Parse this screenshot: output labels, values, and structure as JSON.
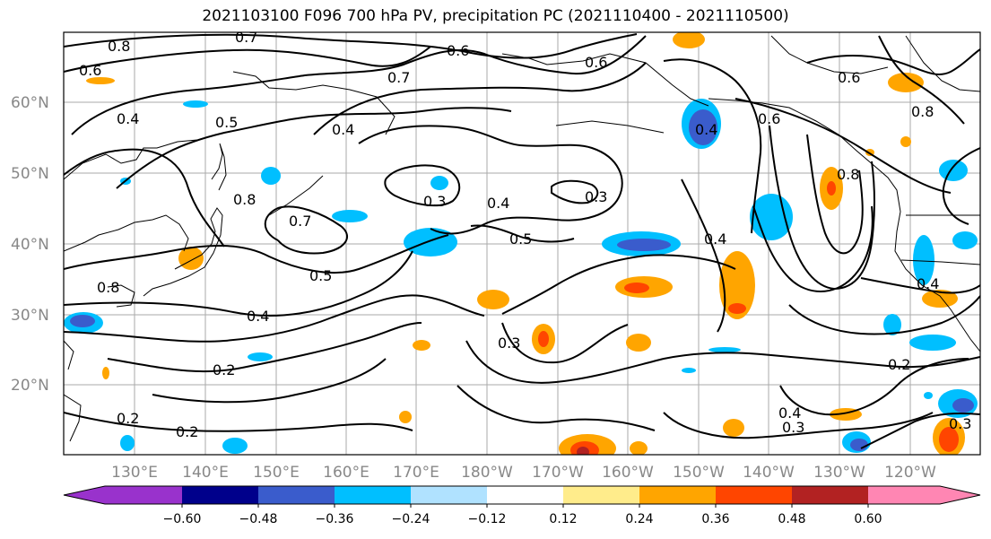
{
  "title": "2021103100 F096 700 hPa PV, precipitation PC (2021110400 - 2021110500)",
  "lat_labels": [
    "60°N",
    "50°N",
    "40°N",
    "30°N",
    "20°N"
  ],
  "lon_labels": [
    "130°E",
    "140°E",
    "150°E",
    "160°E",
    "170°E",
    "180°W",
    "170°W",
    "160°W",
    "150°W",
    "140°W",
    "130°W",
    "120°W"
  ],
  "colorbar": {
    "colors": [
      "#9932cc",
      "#00008b",
      "#3a5ccc",
      "#00bfff",
      "#b0e2ff",
      "#ffffff",
      "#ffec8b",
      "#ffa500",
      "#ff4500",
      "#b22222",
      "#ff86b3"
    ],
    "tick_labels": [
      "−0.60",
      "−0.48",
      "−0.36",
      "−0.24",
      "−0.12",
      "0.12",
      "0.24",
      "0.36",
      "0.48",
      "0.60"
    ]
  },
  "contour_labels": [
    "0.8",
    "0.7",
    "0.6",
    "0.6",
    "0.4",
    "0.5",
    "0.4",
    "0.7",
    "0.6",
    "0.6",
    "0.8",
    "0.3",
    "0.4",
    "0.3",
    "0.7",
    "0.5",
    "0.5",
    "0.4",
    "0.4",
    "0.8",
    "0.6",
    "0.4",
    "0.2",
    "0.3",
    "0.4",
    "0.3",
    "0.2",
    "0.2",
    "0.2",
    "0.3",
    "0.4",
    "0.8",
    "0.8"
  ]
}
